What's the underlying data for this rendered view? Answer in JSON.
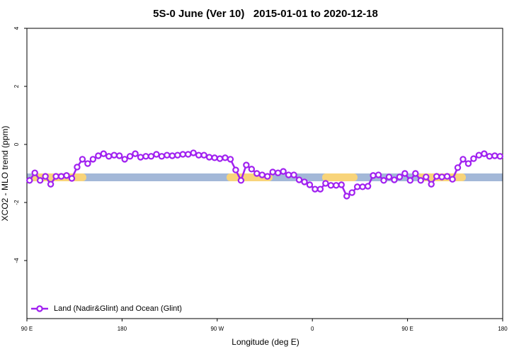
{
  "chart_data": {
    "type": "line",
    "title": "5S-0 June (Ver 10)   2015-01-01 to 2020-12-18",
    "x_label": "Longitude (deg E)",
    "y_label": "XCO2 - MLO trend (ppm)",
    "xlim": [
      90,
      540
    ],
    "xticks": [
      {
        "value": 90,
        "label": "90 E"
      },
      {
        "value": 180,
        "label": "180"
      },
      {
        "value": 270,
        "label": "90 W"
      },
      {
        "value": 360,
        "label": "0"
      },
      {
        "value": 450,
        "label": "90 E"
      },
      {
        "value": 540,
        "label": "180"
      }
    ],
    "ylim": [
      -6,
      4
    ],
    "yticks": [
      -4,
      -2,
      0,
      2,
      4
    ],
    "legend": "bottom-left",
    "x": [
      92.5,
      97.5,
      102.5,
      107.5,
      112.5,
      117.5,
      122.5,
      127.5,
      132.5,
      137.5,
      142.5,
      147.5,
      152.5,
      157.5,
      162.5,
      167.5,
      172.5,
      177.5,
      182.5,
      187.5,
      192.5,
      197.5,
      202.5,
      207.5,
      212.5,
      217.5,
      222.5,
      227.5,
      232.5,
      237.5,
      242.5,
      247.5,
      252.5,
      257.5,
      262.5,
      267.5,
      272.5,
      277.5,
      282.5,
      287.5,
      292.5,
      297.5,
      302.5,
      307.5,
      312.5,
      317.5,
      322.5,
      327.5,
      332.5,
      337.5,
      342.5,
      347.5,
      352.5,
      357.5,
      362.5,
      367.5,
      372.5,
      377.5,
      382.5,
      387.5,
      392.5,
      397.5,
      402.5,
      407.5,
      412.5,
      417.5,
      422.5,
      427.5,
      432.5,
      437.5,
      442.5,
      447.5,
      452.5,
      457.5,
      462.5,
      467.5,
      472.5,
      477.5,
      482.5,
      487.5,
      492.5,
      497.5,
      502.5,
      507.5,
      512.5,
      517.5,
      522.5,
      527.5,
      532.5,
      537.5
    ],
    "series": [
      {
        "name": "Land (Nadir&Glint) and Ocean (Glint)",
        "color": "#a020f0",
        "values": [
          -1.24,
          -0.98,
          -1.24,
          -1.1,
          -1.37,
          -1.1,
          -1.1,
          -1.07,
          -1.17,
          -0.78,
          -0.51,
          -0.66,
          -0.51,
          -0.39,
          -0.32,
          -0.41,
          -0.37,
          -0.39,
          -0.51,
          -0.41,
          -0.32,
          -0.44,
          -0.41,
          -0.41,
          -0.34,
          -0.41,
          -0.37,
          -0.39,
          -0.37,
          -0.34,
          -0.34,
          -0.29,
          -0.37,
          -0.37,
          -0.44,
          -0.46,
          -0.49,
          -0.46,
          -0.51,
          -0.88,
          -1.24,
          -0.71,
          -0.85,
          -1.0,
          -1.05,
          -1.1,
          -0.95,
          -0.98,
          -0.93,
          -1.05,
          -1.05,
          -1.22,
          -1.29,
          -1.39,
          -1.54,
          -1.54,
          -1.34,
          -1.41,
          -1.41,
          -1.39,
          -1.78,
          -1.66,
          -1.46,
          -1.46,
          -1.44,
          -1.07,
          -1.05,
          -1.24,
          -1.12,
          -1.22,
          -1.12,
          -1.0,
          -1.24,
          -1.0,
          -1.24,
          -1.12,
          -1.37,
          -1.1,
          -1.12,
          -1.1,
          -1.2,
          -0.8,
          -0.51,
          -0.66,
          -0.49,
          -0.37,
          -0.32,
          -0.41,
          -0.39,
          -0.41
        ]
      }
    ]
  }
}
